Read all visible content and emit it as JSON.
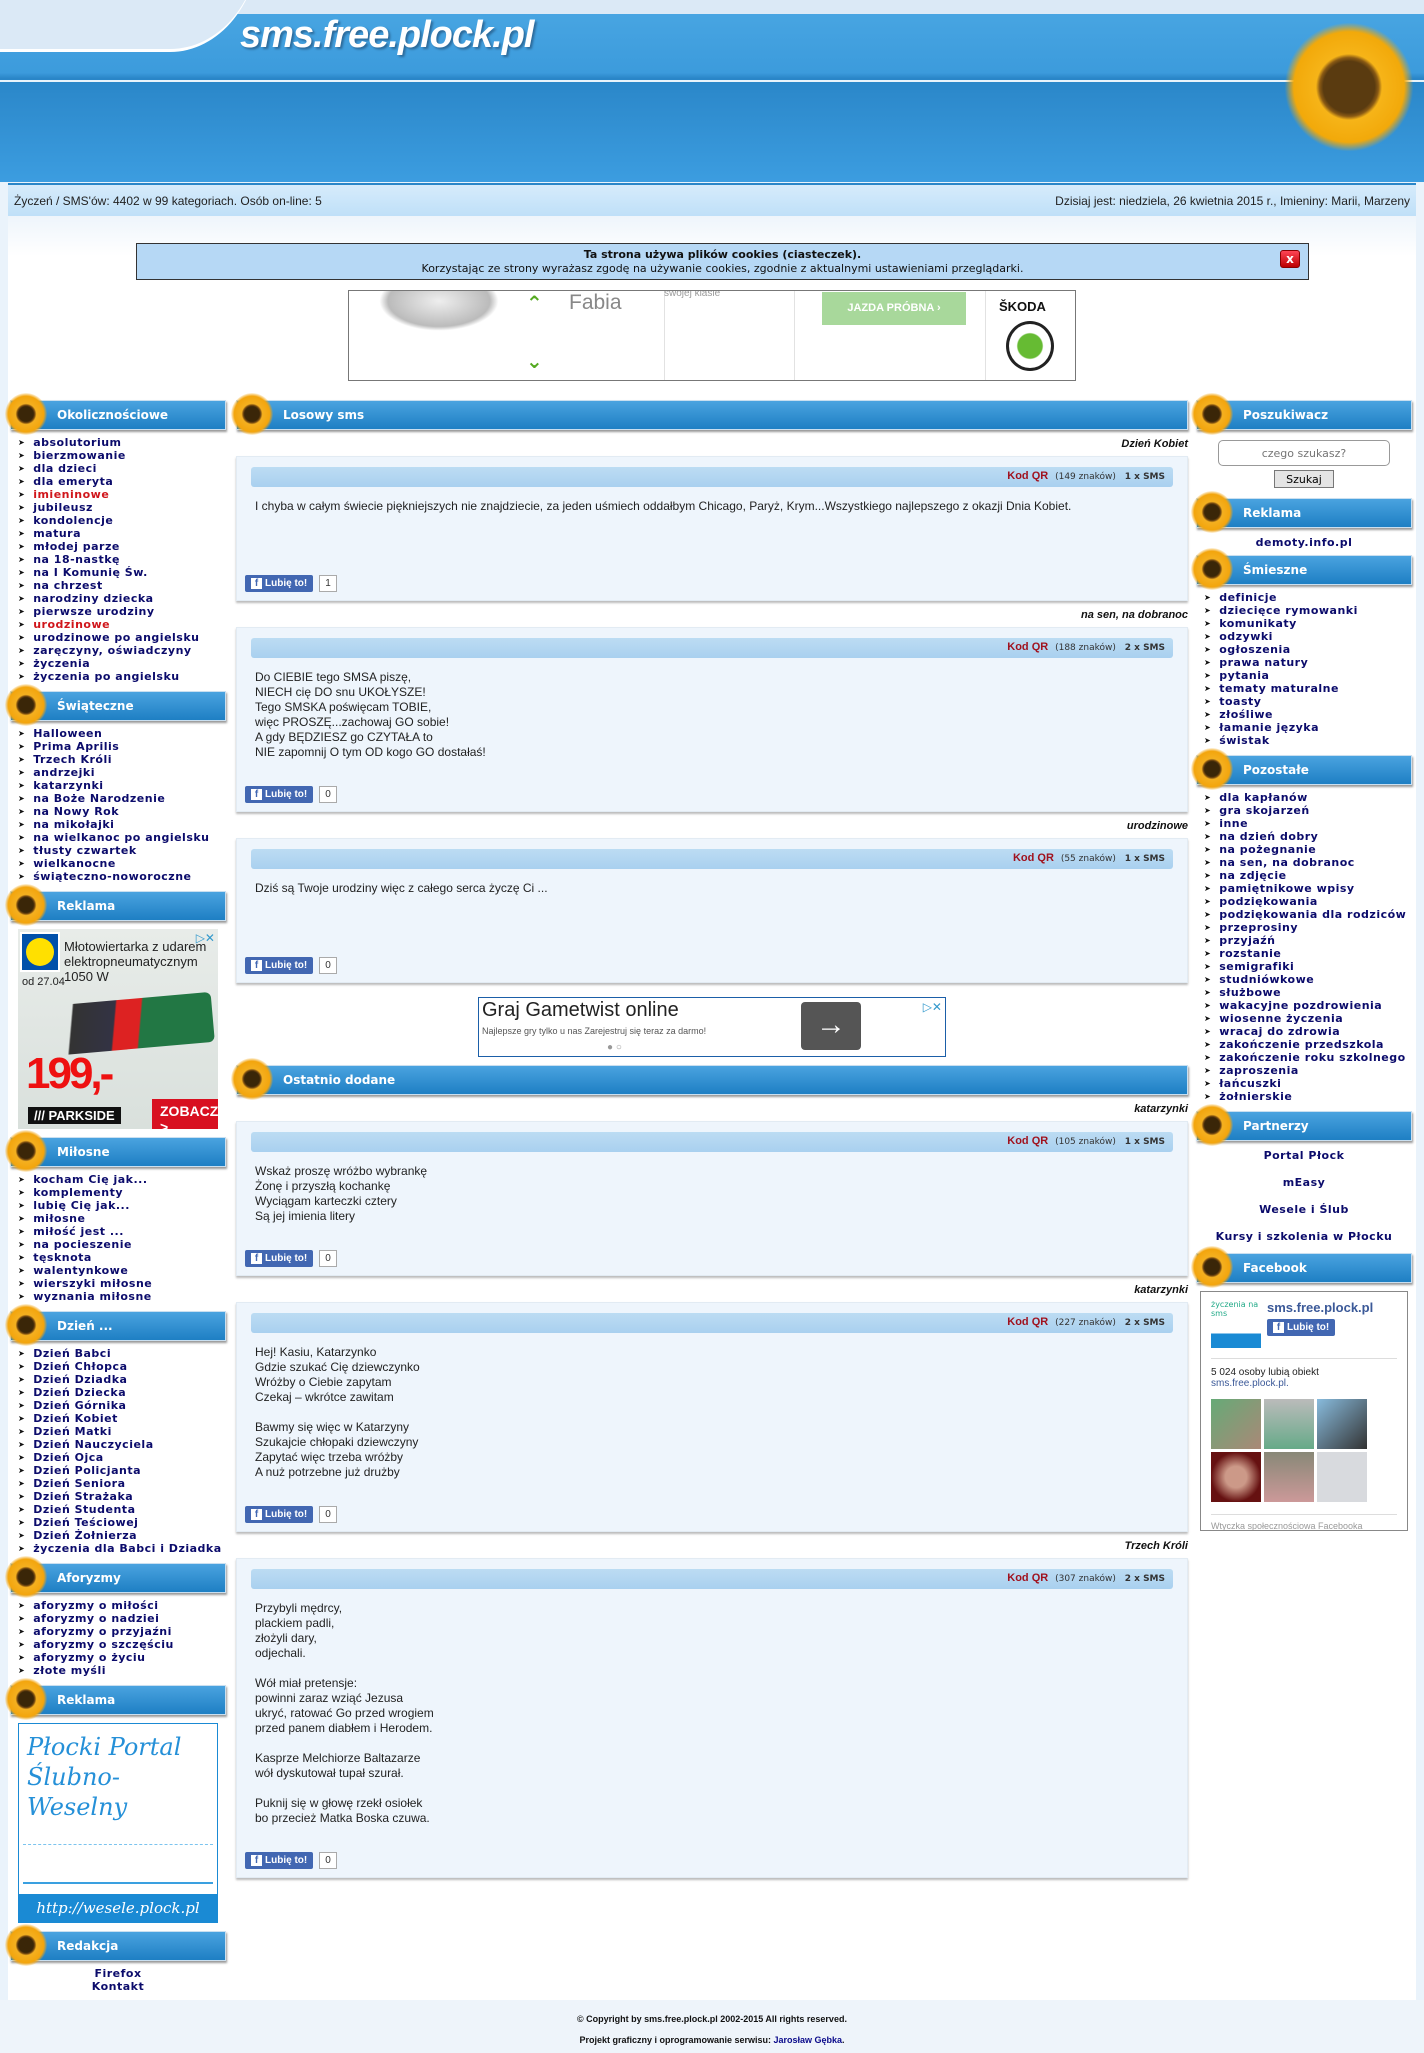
{
  "header": {
    "site_title": "sms.free.plock.pl"
  },
  "infobar": {
    "stats": "Życzeń / SMS'ów: 4402 w 99 kategoriach. Osób on-line: 5",
    "date": "Dzisiaj jest: niedziela, 26 kwietnia 2015 r., Imieniny: Marii, Marzeny"
  },
  "cookie": {
    "title": "Ta strona używa plików cookies (ciasteczek).",
    "text": "Korzystając ze strony wyrażasz zgodę na używanie cookies, zgodnie z aktualnymi ustawieniami przeglądarki.",
    "close": "x"
  },
  "skoda_ad": {
    "model": "Fabia",
    "tagline": "swojej klasie",
    "cta": "JAZDA PRÓBNA ›",
    "brand": "ŠKODA"
  },
  "left": {
    "okol": {
      "title": "Okolicznościowe",
      "items": [
        "absolutorium",
        "bierzmowanie",
        "dla dzieci",
        "dla emeryta",
        "imieninowe",
        "jubileusz",
        "kondolencje",
        "matura",
        "młodej parze",
        "na 18-nastkę",
        "na I Komunię Św.",
        "na chrzest",
        "narodziny dziecka",
        "pierwsze urodziny",
        "urodzinowe",
        "urodzinowe po angielsku",
        "zaręczyny, oświadczyny",
        "życzenia",
        "życzenia po angielsku"
      ],
      "highlighted": [
        "imieninowe",
        "urodzinowe"
      ],
      "highlight_color": "#d0161b"
    },
    "swiat": {
      "title": "Świąteczne",
      "items": [
        "Halloween",
        "Prima Aprilis",
        "Trzech Króli",
        "andrzejki",
        "katarzynki",
        "na Boże Narodzenie",
        "na Nowy Rok",
        "na mikołajki",
        "na wielkanoc po angielsku",
        "tłusty czwartek",
        "wielkanocne",
        "świąteczno-noworoczne"
      ]
    },
    "reklama1": {
      "title": "Reklama",
      "ad_title": "Młotowiertarka z udarem elektropneumatycznym 1050 W",
      "ad_date": "od 27.04",
      "ad_price": "199,-",
      "ad_brand": "/// PARKSIDE",
      "ad_cta": "ZOBACZ >",
      "ad_logo": "LIDL"
    },
    "milosne": {
      "title": "Miłosne",
      "items": [
        "kocham Cię jak...",
        "komplementy",
        "lubię Cię jak...",
        "miłosne",
        "miłość jest ...",
        "na pocieszenie",
        "tęsknota",
        "walentynkowe",
        "wierszyki miłosne",
        "wyznania miłosne"
      ]
    },
    "dzien": {
      "title": "Dzień ...",
      "items": [
        "Dzień Babci",
        "Dzień Chłopca",
        "Dzień Dziadka",
        "Dzień Dziecka",
        "Dzień Górnika",
        "Dzień Kobiet",
        "Dzień Matki",
        "Dzień Nauczyciela",
        "Dzień Ojca",
        "Dzień Policjanta",
        "Dzień Seniora",
        "Dzień Strażaka",
        "Dzień Studenta",
        "Dzień Teściowej",
        "Dzień Żołnierza",
        "życzenia dla Babci i Dziadka"
      ]
    },
    "aforyzmy": {
      "title": "Aforyzmy",
      "items": [
        "aforyzmy o miłości",
        "aforyzmy o nadziei",
        "aforyzmy o przyjaźni",
        "aforyzmy o szczęściu",
        "aforyzmy o życiu",
        "złote myśli"
      ]
    },
    "reklama2": {
      "title": "Reklama",
      "banner_title": "Płocki Portal Ślubno-Weselny",
      "banner_url": "http://wesele.plock.pl"
    },
    "redakcja": {
      "title": "Redakcja",
      "links": [
        "Firefox",
        "Kontakt"
      ]
    }
  },
  "main": {
    "random": {
      "title": "Losowy sms",
      "messages": [
        {
          "category": "Dzień Kobiet",
          "qr": "Kod QR",
          "chars": "(149 znaków)",
          "sms": "1 x SMS",
          "text": "I chyba w całym świecie piękniejszych nie znajdziecie, za jeden uśmiech oddałbym Chicago, Paryż, Krym...Wszystkiego najlepszego z okazji Dnia Kobiet.",
          "like": "Lubię to!",
          "likes": "1"
        },
        {
          "category": "na sen, na dobranoc",
          "qr": "Kod QR",
          "chars": "(188 znaków)",
          "sms": "2 x SMS",
          "text": "Do CIEBIE tego SMSA piszę,\nNIECH cię DO snu UKOŁYSZE!\nTego SMSKA poświęcam TOBIE,\nwięc PROSZĘ...zachowaj GO sobie!\nA gdy BĘDZIESZ go CZYTAŁA to\nNIE zapomnij O tym OD kogo GO dostałaś!",
          "like": "Lubię to!",
          "likes": "0"
        },
        {
          "category": "urodzinowe",
          "qr": "Kod QR",
          "chars": "(55 znaków)",
          "sms": "1 x SMS",
          "text": "Dziś są Twoje urodziny więc z całego serca życzę Ci ...",
          "like": "Lubię to!",
          "likes": "0"
        }
      ]
    },
    "gametwist_ad": {
      "title": "Graj Gametwist online",
      "subtitle": "Najlepsze gry tylko u nas Zarejestruj się teraz za darmo!"
    },
    "recent": {
      "title": "Ostatnio dodane",
      "messages": [
        {
          "category": "katarzynki",
          "qr": "Kod QR",
          "chars": "(105 znaków)",
          "sms": "1 x SMS",
          "text": "Wskaż proszę wróżbo wybrankę\nŻonę i przyszłą kochankę\nWyciągam karteczki cztery\nSą jej imienia litery",
          "like": "Lubię to!",
          "likes": "0"
        },
        {
          "category": "katarzynki",
          "qr": "Kod QR",
          "chars": "(227 znaków)",
          "sms": "2 x SMS",
          "text": "Hej! Kasiu, Katarzynko\nGdzie szukać Cię dziewczynko\nWróżby o Ciebie zapytam\nCzekaj – wkrótce zawitam\n\nBawmy się więc w Katarzyny\nSzukajcie chłopaki dziewczyny\nZapytać więc trzeba wróżby\nA nuż potrzebne już drużby",
          "like": "Lubię to!",
          "likes": "0"
        },
        {
          "category": "Trzech Króli",
          "qr": "Kod QR",
          "chars": "(307 znaków)",
          "sms": "2 x SMS",
          "text": "Przybyli mędrcy,\nplackiem padli,\nzłożyli dary,\nodjechali.\n\nWół miał pretensje:\npowinni zaraz wziąć Jezusa\nukryć, ratować Go przed wrogiem\nprzed panem diabłem i Herodem.\n\nKasprze Melchiorze Baltazarze\nwół dyskutował tupał szurał.\n\nPuknij się w głowę rzekł osiołek\nbo przecież Matka Boska czuwa.",
          "like": "Lubię to!",
          "likes": "0"
        }
      ]
    }
  },
  "right": {
    "search": {
      "title": "Poszukiwacz",
      "placeholder": "czego szukasz?",
      "button": "Szukaj"
    },
    "reklama": {
      "title": "Reklama",
      "link": "demoty.info.pl"
    },
    "smieszne": {
      "title": "Śmieszne",
      "items": [
        "definicje",
        "dziecięce rymowanki",
        "komunikaty",
        "odzywki",
        "ogłoszenia",
        "prawa natury",
        "pytania",
        "tematy maturalne",
        "toasty",
        "złośliwe",
        "łamanie języka",
        "świstak"
      ]
    },
    "pozostale": {
      "title": "Pozostałe",
      "items": [
        "dla kapłanów",
        "gra skojarzeń",
        "inne",
        "na dzień dobry",
        "na pożegnanie",
        "na sen, na dobranoc",
        "na zdjęcie",
        "pamiętnikowe wpisy",
        "podziękowania",
        "podziękowania dla rodziców",
        "przeprosiny",
        "przyjaźń",
        "rozstanie",
        "semigrafiki",
        "studniówkowe",
        "służbowe",
        "wakacyjne pozdrowienia",
        "wiosenne życzenia",
        "wracaj do zdrowia",
        "zakończenie przedszkola",
        "zakończenie roku szkolnego",
        "zaproszenia",
        "łańcuszki",
        "żołnierskie"
      ]
    },
    "partnerzy": {
      "title": "Partnerzy",
      "links": [
        "Portal Płock",
        "mEasy",
        "Wesele i Ślub",
        "Kursy i szkolenia w Płocku"
      ]
    },
    "facebook": {
      "title": "Facebook",
      "logo_text": "życzenia na sms",
      "page_name": "sms.free.plock.pl",
      "like": "Lubię to!",
      "count": "5 024 osoby lubią obiekt",
      "page_link": "sms.free.plock.pl.",
      "plugin": "Wtyczka społecznościowa Facebooka"
    }
  },
  "footer": {
    "copyright": "© Copyright by sms.free.plock.pl 2002-2015 All rights reserved.",
    "design": "Projekt graficzny i oprogramowanie serwisu: ",
    "author": "Jarosław Gębka",
    "end": "."
  },
  "colors": {
    "accent": "#2a86c8",
    "link": "#0b0b6b",
    "qr": "#a0121e"
  }
}
